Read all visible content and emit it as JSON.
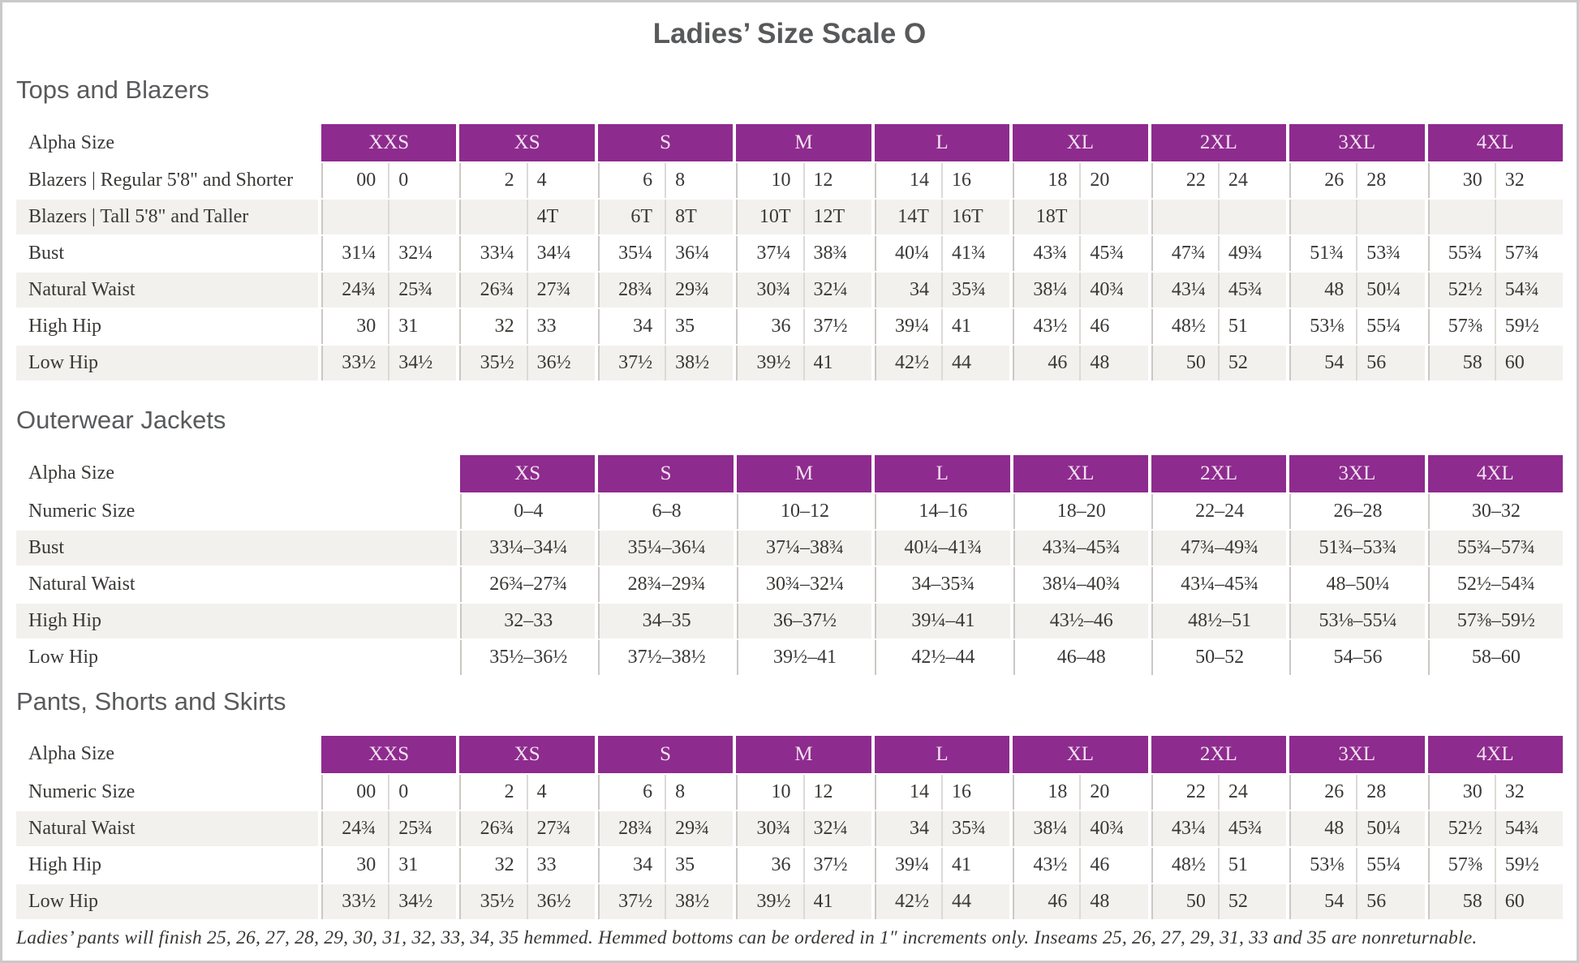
{
  "title": "Ladies’ Size Scale O",
  "colors": {
    "accent": "#8e2b8e",
    "stripe": "#f2f1ee",
    "header_text": "#f2e2f1"
  },
  "sections": [
    {
      "heading": "Tops and Blazers",
      "table": {
        "type": "paired",
        "label_header": "Alpha Size",
        "size_headers": [
          "XXS",
          "XS",
          "S",
          "M",
          "L",
          "XL",
          "2XL",
          "3XL",
          "4XL"
        ],
        "rows": [
          {
            "label": "Blazers | Regular 5'8\" and Shorter",
            "values": [
              [
                "00",
                "0"
              ],
              [
                "2",
                "4"
              ],
              [
                "6",
                "8"
              ],
              [
                "10",
                "12"
              ],
              [
                "14",
                "16"
              ],
              [
                "18",
                "20"
              ],
              [
                "22",
                "24"
              ],
              [
                "26",
                "28"
              ],
              [
                "30",
                "32"
              ]
            ]
          },
          {
            "label": "Blazers | Tall 5'8\" and Taller",
            "values": [
              [
                "",
                ""
              ],
              [
                "",
                "4T"
              ],
              [
                "6T",
                "8T"
              ],
              [
                "10T",
                "12T"
              ],
              [
                "14T",
                "16T"
              ],
              [
                "18T",
                ""
              ],
              [
                "",
                ""
              ],
              [
                "",
                ""
              ],
              [
                "",
                ""
              ]
            ]
          },
          {
            "label": "Bust",
            "values": [
              [
                "31¼",
                "32¼"
              ],
              [
                "33¼",
                "34¼"
              ],
              [
                "35¼",
                "36¼"
              ],
              [
                "37¼",
                "38¾"
              ],
              [
                "40¼",
                "41¾"
              ],
              [
                "43¾",
                "45¾"
              ],
              [
                "47¾",
                "49¾"
              ],
              [
                "51¾",
                "53¾"
              ],
              [
                "55¾",
                "57¾"
              ]
            ]
          },
          {
            "label": "Natural Waist",
            "values": [
              [
                "24¾",
                "25¾"
              ],
              [
                "26¾",
                "27¾"
              ],
              [
                "28¾",
                "29¾"
              ],
              [
                "30¾",
                "32¼"
              ],
              [
                "34",
                "35¾"
              ],
              [
                "38¼",
                "40¾"
              ],
              [
                "43¼",
                "45¾"
              ],
              [
                "48",
                "50¼"
              ],
              [
                "52½",
                "54¾"
              ]
            ]
          },
          {
            "label": "High Hip",
            "values": [
              [
                "30",
                "31"
              ],
              [
                "32",
                "33"
              ],
              [
                "34",
                "35"
              ],
              [
                "36",
                "37½"
              ],
              [
                "39¼",
                "41"
              ],
              [
                "43½",
                "46"
              ],
              [
                "48½",
                "51"
              ],
              [
                "53⅛",
                "55¼"
              ],
              [
                "57⅜",
                "59½"
              ]
            ]
          },
          {
            "label": "Low Hip",
            "values": [
              [
                "33½",
                "34½"
              ],
              [
                "35½",
                "36½"
              ],
              [
                "37½",
                "38½"
              ],
              [
                "39½",
                "41"
              ],
              [
                "42½",
                "44"
              ],
              [
                "46",
                "48"
              ],
              [
                "50",
                "52"
              ],
              [
                "54",
                "56"
              ],
              [
                "58",
                "60"
              ]
            ]
          }
        ]
      }
    },
    {
      "heading": "Outerwear Jackets",
      "table": {
        "type": "single",
        "label_header": "Alpha Size",
        "size_headers": [
          "XS",
          "S",
          "M",
          "L",
          "XL",
          "2XL",
          "3XL",
          "4XL"
        ],
        "rows": [
          {
            "label": "Numeric Size",
            "values": [
              "0–4",
              "6–8",
              "10–12",
              "14–16",
              "18–20",
              "22–24",
              "26–28",
              "30–32"
            ]
          },
          {
            "label": "Bust",
            "values": [
              "33¼–34¼",
              "35¼–36¼",
              "37¼–38¾",
              "40¼–41¾",
              "43¾–45¾",
              "47¾–49¾",
              "51¾–53¾",
              "55¾–57¾"
            ]
          },
          {
            "label": "Natural Waist",
            "values": [
              "26¾–27¾",
              "28¾–29¾",
              "30¾–32¼",
              "34–35¾",
              "38¼–40¾",
              "43¼–45¾",
              "48–50¼",
              "52½–54¾"
            ]
          },
          {
            "label": "High Hip",
            "values": [
              "32–33",
              "34–35",
              "36–37½",
              "39¼–41",
              "43½–46",
              "48½–51",
              "53⅛–55¼",
              "57⅜–59½"
            ]
          },
          {
            "label": "Low Hip",
            "values": [
              "35½–36½",
              "37½–38½",
              "39½–41",
              "42½–44",
              "46–48",
              "50–52",
              "54–56",
              "58–60"
            ]
          }
        ]
      }
    },
    {
      "heading": "Pants, Shorts and Skirts",
      "table": {
        "type": "paired",
        "label_header": "Alpha Size",
        "size_headers": [
          "XXS",
          "XS",
          "S",
          "M",
          "L",
          "XL",
          "2XL",
          "3XL",
          "4XL"
        ],
        "rows": [
          {
            "label": "Numeric Size",
            "values": [
              [
                "00",
                "0"
              ],
              [
                "2",
                "4"
              ],
              [
                "6",
                "8"
              ],
              [
                "10",
                "12"
              ],
              [
                "14",
                "16"
              ],
              [
                "18",
                "20"
              ],
              [
                "22",
                "24"
              ],
              [
                "26",
                "28"
              ],
              [
                "30",
                "32"
              ]
            ]
          },
          {
            "label": "Natural Waist",
            "values": [
              [
                "24¾",
                "25¾"
              ],
              [
                "26¾",
                "27¾"
              ],
              [
                "28¾",
                "29¾"
              ],
              [
                "30¾",
                "32¼"
              ],
              [
                "34",
                "35¾"
              ],
              [
                "38¼",
                "40¾"
              ],
              [
                "43¼",
                "45¾"
              ],
              [
                "48",
                "50¼"
              ],
              [
                "52½",
                "54¾"
              ]
            ]
          },
          {
            "label": "High Hip",
            "values": [
              [
                "30",
                "31"
              ],
              [
                "32",
                "33"
              ],
              [
                "34",
                "35"
              ],
              [
                "36",
                "37½"
              ],
              [
                "39¼",
                "41"
              ],
              [
                "43½",
                "46"
              ],
              [
                "48½",
                "51"
              ],
              [
                "53⅛",
                "55¼"
              ],
              [
                "57⅜",
                "59½"
              ]
            ]
          },
          {
            "label": "Low Hip",
            "values": [
              [
                "33½",
                "34½"
              ],
              [
                "35½",
                "36½"
              ],
              [
                "37½",
                "38½"
              ],
              [
                "39½",
                "41"
              ],
              [
                "42½",
                "44"
              ],
              [
                "46",
                "48"
              ],
              [
                "50",
                "52"
              ],
              [
                "54",
                "56"
              ],
              [
                "58",
                "60"
              ]
            ]
          }
        ]
      }
    }
  ],
  "footnote": "Ladies’ pants will finish 25, 26, 27, 28, 29, 30, 31, 32, 33, 34, 35 hemmed. Hemmed bottoms can be ordered in 1″ increments only. Inseams 25, 26, 27, 29, 31, 33 and 35 are nonreturnable."
}
